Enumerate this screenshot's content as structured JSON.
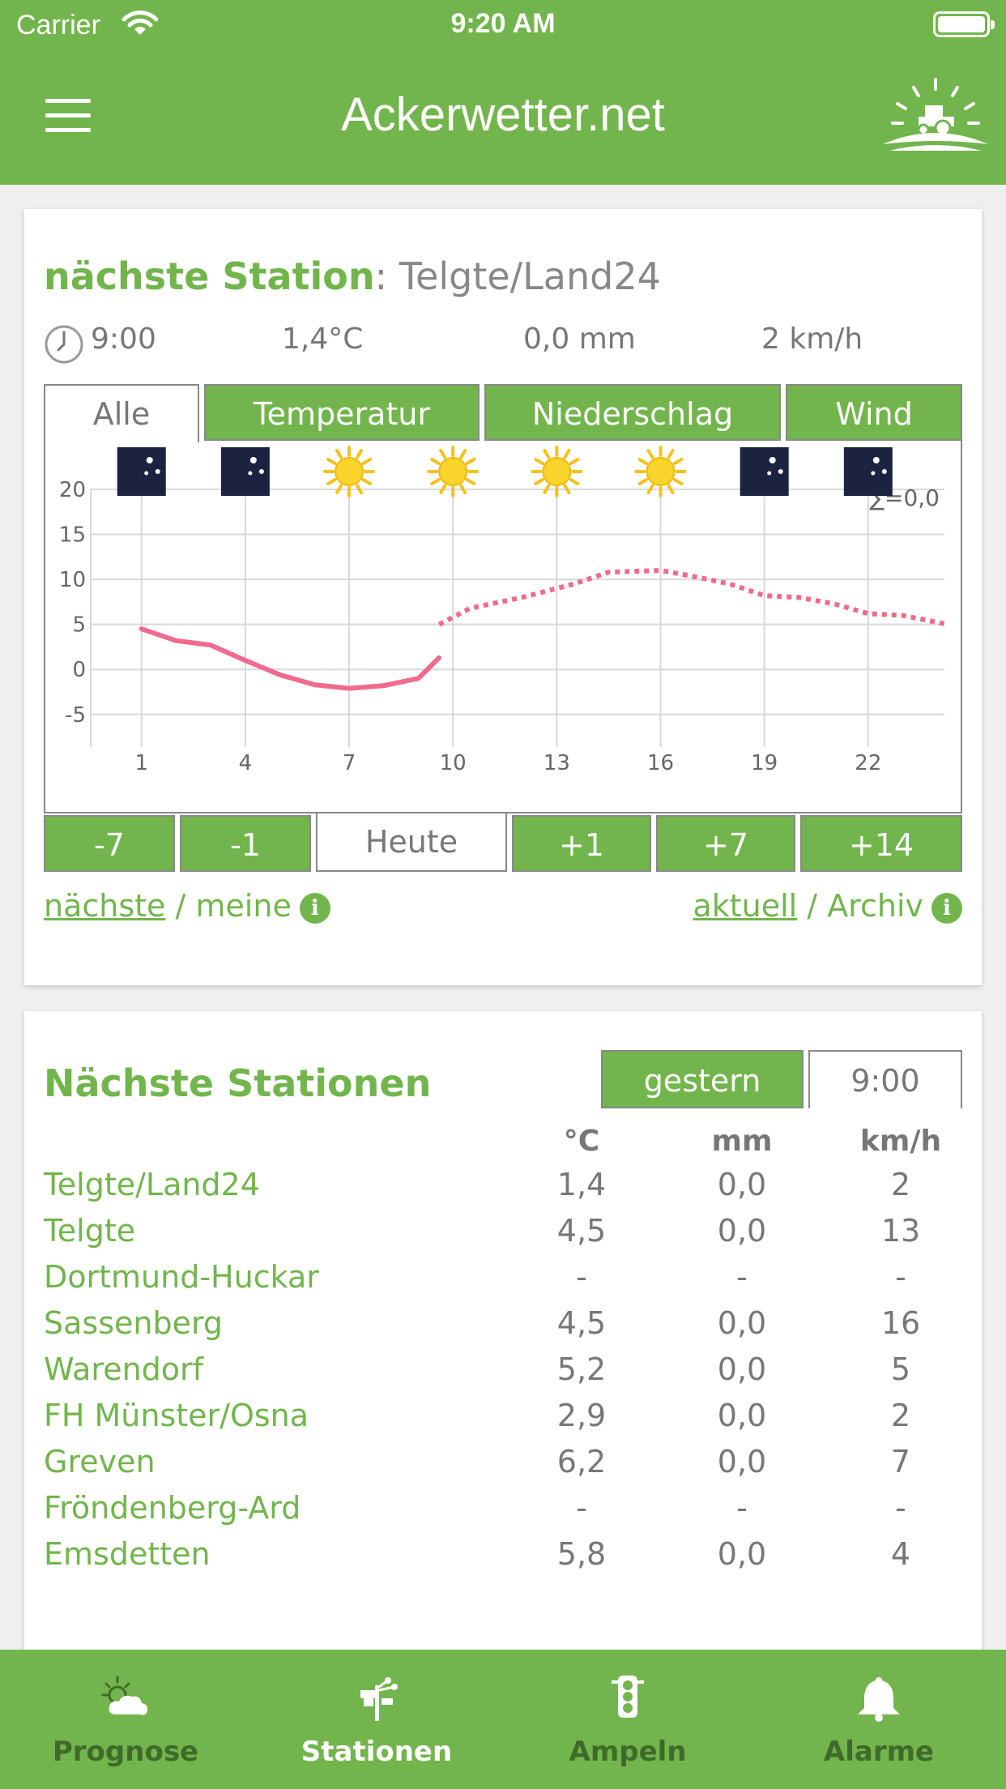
{
  "status_bar": {
    "carrier": "Carrier",
    "time": "9:20 AM"
  },
  "header": {
    "title": "Ackerwetter.net",
    "menu_icon": "hamburger-icon",
    "logo_icon": "tractor-sun-logo"
  },
  "station_card": {
    "title_prefix": "nächste Station",
    "title_sep": ":",
    "station_name": "Telgte/Land24",
    "time": "9:00",
    "temperature": "1,4°C",
    "precipitation": "0,0 mm",
    "wind": "2 km/h",
    "tabs": [
      {
        "label": "Alle",
        "active": true
      },
      {
        "label": "Temperatur",
        "active": false
      },
      {
        "label": "Niederschlag",
        "active": false
      },
      {
        "label": "Wind",
        "active": false
      }
    ],
    "day_buttons": [
      {
        "label": "-7",
        "active": false
      },
      {
        "label": "-1",
        "active": false
      },
      {
        "label": "Heute",
        "active": true
      },
      {
        "label": "+1",
        "active": false
      },
      {
        "label": "+7",
        "active": false
      },
      {
        "label": "+14",
        "active": false
      }
    ],
    "links_left": {
      "a": "nächste",
      "sep": " / ",
      "b": "meine"
    },
    "links_right": {
      "a": "aktuell",
      "sep": " / ",
      "b": "Archiv"
    },
    "info_icon": "i"
  },
  "chart_data": {
    "type": "line",
    "xlim": [
      0,
      25
    ],
    "ylim": [
      -7,
      20
    ],
    "x_ticks": [
      1,
      4,
      7,
      10,
      13,
      16,
      19,
      22
    ],
    "y_ticks": [
      20,
      15,
      10,
      5,
      0,
      -5
    ],
    "x_tick_labels": [
      "1",
      "4",
      "7",
      "10",
      "13",
      "16",
      "19",
      "22"
    ],
    "y_tick_labels": [
      "20",
      "15",
      "10",
      "5",
      "0",
      "-5"
    ],
    "precip_sum_label": "∑=0,0",
    "weather_icons": [
      "moon",
      "moon",
      "sun",
      "sun",
      "sun",
      "sun",
      "moon",
      "moon"
    ],
    "series": [
      {
        "style": "solid",
        "color": "#f06b8c",
        "x": [
          1,
          2,
          3,
          4,
          5,
          6,
          7,
          8,
          9,
          9.6
        ],
        "y": [
          4.5,
          3.2,
          2.7,
          1.0,
          -0.6,
          -1.7,
          -2.1,
          -1.8,
          -1.0,
          1.3
        ]
      },
      {
        "style": "dotted",
        "color": "#f06b8c",
        "x": [
          9.6,
          10.5,
          12,
          13.5,
          14.5,
          16,
          17,
          18,
          19,
          20,
          21,
          22,
          23,
          24.3
        ],
        "y": [
          5.0,
          6.8,
          8.0,
          9.5,
          10.8,
          11.0,
          10.3,
          9.5,
          8.2,
          8.0,
          7.3,
          6.2,
          6.0,
          5.0
        ]
      }
    ],
    "grid": true
  },
  "nearby_card": {
    "title": "Nächste Stationen",
    "toggle": [
      {
        "label": "gestern",
        "active": true
      },
      {
        "label": "9:00",
        "active": false
      }
    ],
    "columns": [
      "°C",
      "mm",
      "km/h"
    ],
    "rows": [
      {
        "name": "Telgte/Land24",
        "temp": "1,4",
        "rain": "0,0",
        "wind": "2"
      },
      {
        "name": "Telgte",
        "temp": "4,5",
        "rain": "0,0",
        "wind": "13"
      },
      {
        "name": "Dortmund-Huckar",
        "temp": "-",
        "rain": "-",
        "wind": "-"
      },
      {
        "name": "Sassenberg",
        "temp": "4,5",
        "rain": "0,0",
        "wind": "16"
      },
      {
        "name": "Warendorf",
        "temp": "5,2",
        "rain": "0,0",
        "wind": "5"
      },
      {
        "name": "FH Münster/Osna",
        "temp": "2,9",
        "rain": "0,0",
        "wind": "2"
      },
      {
        "name": "Greven",
        "temp": "6,2",
        "rain": "0,0",
        "wind": "7"
      },
      {
        "name": "Fröndenberg-Ard",
        "temp": "-",
        "rain": "-",
        "wind": "-"
      },
      {
        "name": "Emsdetten",
        "temp": "5,8",
        "rain": "0,0",
        "wind": "4"
      }
    ]
  },
  "bottom_nav": [
    {
      "label": "Prognose",
      "icon": "sun-cloud-icon",
      "active": false
    },
    {
      "label": "Stationen",
      "icon": "weather-station-icon",
      "active": true
    },
    {
      "label": "Ampeln",
      "icon": "traffic-light-icon",
      "active": false
    },
    {
      "label": "Alarme",
      "icon": "bell-icon",
      "active": false
    }
  ],
  "colors": {
    "brand_green": "#72b54c",
    "line_pink": "#f06b8c",
    "text_gray": "#777777",
    "nav_inactive": "#3a5a2a"
  }
}
